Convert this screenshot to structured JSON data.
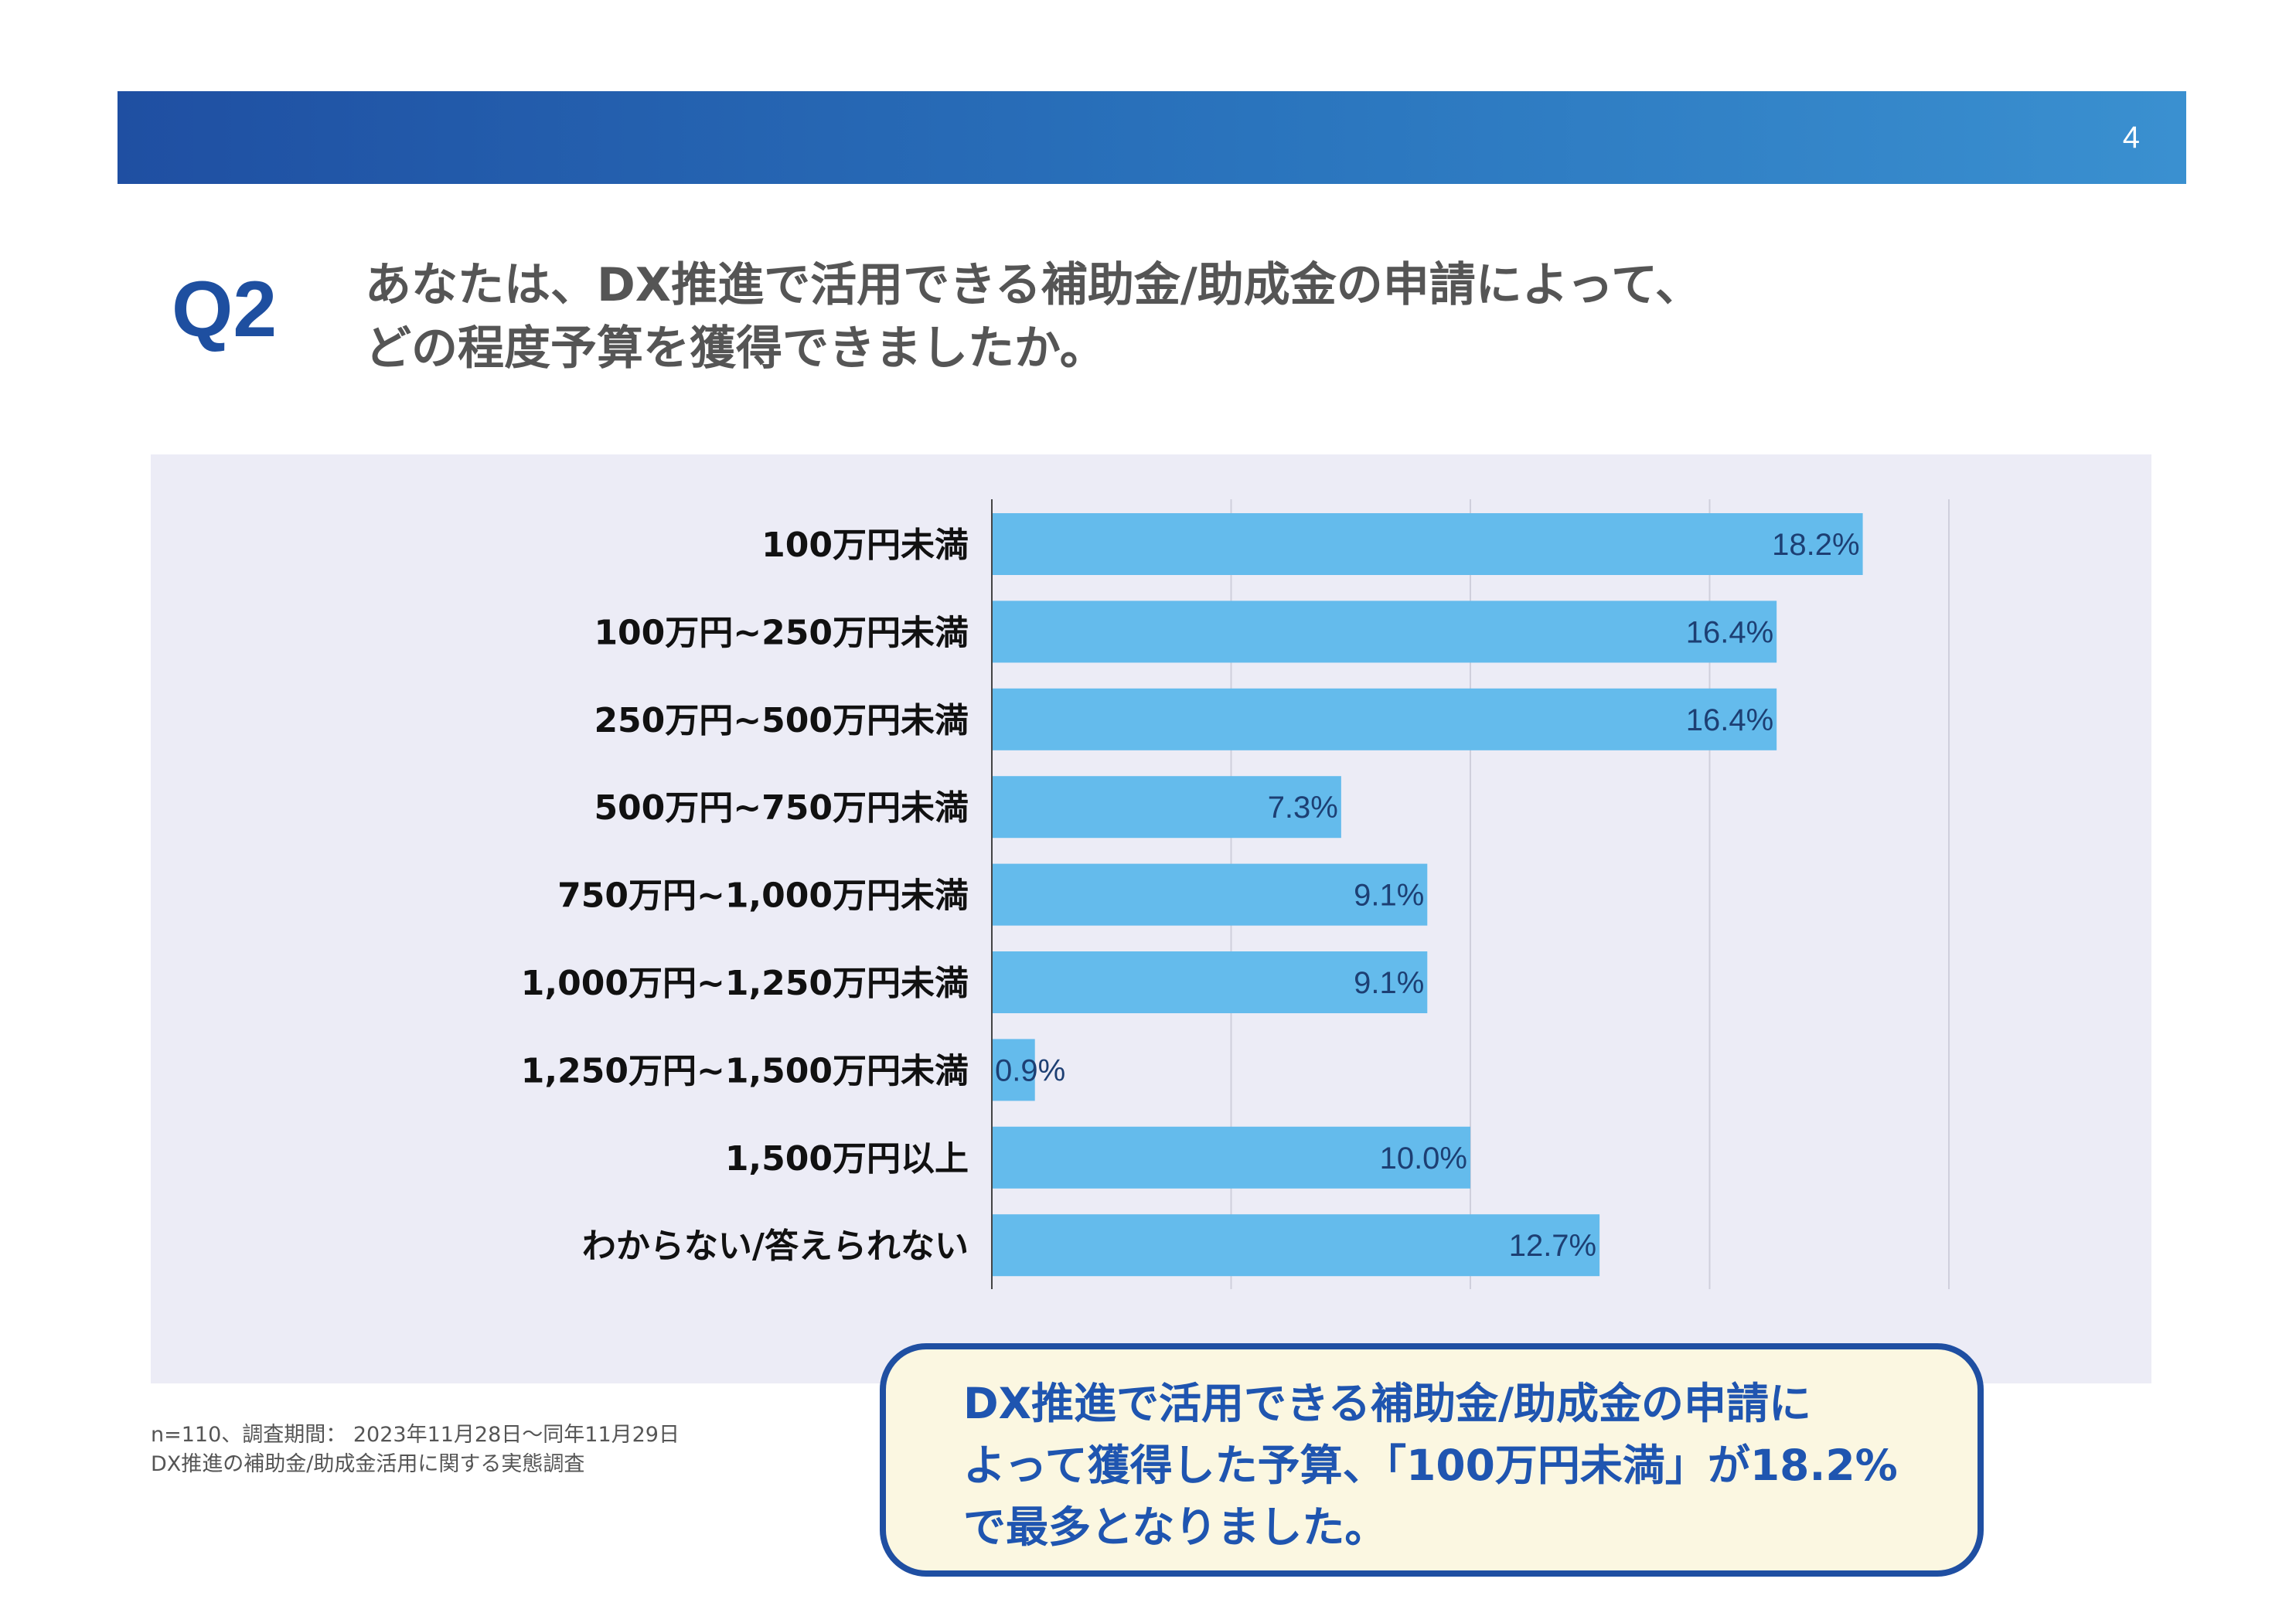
{
  "header": {
    "page_number": "4",
    "accent_color": "#1f4fa2"
  },
  "question": {
    "label": "Q2",
    "line1": "あなたは、DX推進で活用できる補助金/助成金の申請によって、",
    "line2": "どの程度予算を獲得できましたか。"
  },
  "chart_data": {
    "type": "bar",
    "orientation": "horizontal",
    "categories": [
      "100万円未満",
      "100万円~250万円未満",
      "250万円~500万円未満",
      "500万円~750万円未満",
      "750万円~1,000万円未満",
      "1,000万円~1,250万円未満",
      "1,250万円~1,500万円未満",
      "1,500万円以上",
      "わからない/答えられない"
    ],
    "values": [
      18.2,
      16.4,
      16.4,
      7.3,
      9.1,
      9.1,
      0.9,
      10.0,
      12.7
    ],
    "value_labels": [
      "18.2%",
      "16.4%",
      "16.4%",
      "7.3%",
      "9.1%",
      "9.1%",
      "0.9%",
      "10.0%",
      "12.7%"
    ],
    "xlim": [
      0,
      20
    ],
    "gridlines": [
      0,
      5,
      10,
      15,
      20
    ],
    "grid": true,
    "bar_color": "#64bbec",
    "value_label_color": "#1d3f73"
  },
  "footnote": {
    "line1": "n=110、調査期間： 2023年11月28日～同年11月29日",
    "line2": "DX推進の補助金/助成金活用に関する実態調査"
  },
  "callout": {
    "line1": "DX推進で活用できる補助金/助成金の申請に",
    "line2": "よって獲得した予算、「100万円未満」が18.2%",
    "line3": "で最多となりました。",
    "border_color": "#1f4fa2",
    "background_color": "#fbf7e1"
  }
}
